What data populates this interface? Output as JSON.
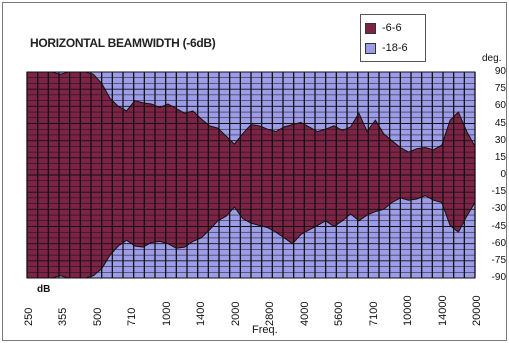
{
  "chart_data": {
    "type": "area",
    "title": "HORIZONTAL BEAMWIDTH (-6dB)",
    "ylabel": "deg.",
    "xlabel": "Freq.",
    "x_unit_label": "dB",
    "ylim": [
      -90,
      90
    ],
    "yticks": [
      90,
      75,
      60,
      45,
      30,
      15,
      0,
      -15,
      -30,
      -45,
      -60,
      -75,
      -90
    ],
    "xtick_labels": [
      "250",
      "355",
      "500",
      "710",
      "1000",
      "1400",
      "2000",
      "2800",
      "4000",
      "5600",
      "7100",
      "10000",
      "14000",
      "20000"
    ],
    "legend_placement": "top-right",
    "grid": true,
    "series": [
      {
        "name": "-6-6",
        "color": "#7c2346",
        "values": [
          90,
          90,
          90,
          90,
          88,
          90,
          90,
          90,
          88,
          80,
          67,
          60,
          56,
          65,
          63,
          62,
          59,
          62,
          58,
          54,
          56,
          49,
          43,
          41,
          34,
          27,
          36,
          44,
          43,
          40,
          38,
          42,
          44,
          46,
          42,
          38,
          40,
          43,
          39,
          42,
          54,
          38,
          48,
          36,
          30,
          24,
          20,
          23,
          24,
          22,
          26,
          48,
          55,
          38,
          25
        ],
        "lower": [
          -90,
          -90,
          -90,
          -90,
          -88,
          -90,
          -90,
          -90,
          -88,
          -82,
          -70,
          -62,
          -57,
          -62,
          -63,
          -59,
          -58,
          -60,
          -64,
          -63,
          -58,
          -55,
          -48,
          -40,
          -36,
          -28,
          -38,
          -42,
          -44,
          -46,
          -50,
          -55,
          -60,
          -52,
          -48,
          -44,
          -40,
          -45,
          -40,
          -34,
          -40,
          -35,
          -32,
          -30,
          -24,
          -20,
          -22,
          -21,
          -18,
          -22,
          -24,
          -44,
          -50,
          -36,
          -24
        ]
      },
      {
        "name": "-18-6",
        "color": "#9c9ce8",
        "values": [
          90,
          90,
          90,
          90,
          90,
          90,
          90,
          90,
          90,
          90,
          90,
          90,
          90,
          90,
          90,
          90,
          90,
          90,
          90,
          90,
          90,
          90,
          90,
          90,
          90,
          90,
          90,
          90,
          90,
          90,
          90,
          90,
          90,
          90,
          90,
          90,
          90,
          90,
          90,
          90,
          90,
          90,
          90,
          90,
          90,
          90,
          90,
          90,
          90,
          90,
          90,
          90,
          90,
          90,
          90
        ]
      }
    ]
  }
}
